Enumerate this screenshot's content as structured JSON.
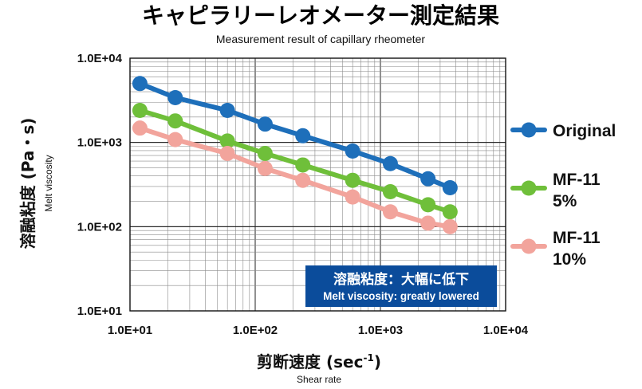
{
  "title": "キャピラリーレオメーター測定結果",
  "subtitle": "Measurement result of capillary rheometer",
  "chart_data": {
    "type": "line",
    "x_scale": "log",
    "y_scale": "log",
    "xlim": [
      10,
      10000
    ],
    "ylim": [
      10,
      10000
    ],
    "grid": true,
    "legend_position": "right",
    "xlabel_jp": "剪断速度 (sec",
    "xlabel_sup": "-1",
    "xlabel_close": ")",
    "xlabel_en": "Shear rate",
    "ylabel_jp": "溶融粘度 (Pa・s)",
    "ylabel_en": "Melt viscosity",
    "x_tick_labels": [
      "1.0E+01",
      "1.0E+02",
      "1.0E+03",
      "1.0E+04"
    ],
    "y_tick_labels": [
      "1.0E+01",
      "1.0E+02",
      "1.0E+03",
      "1.0E+04"
    ],
    "x": [
      12,
      23,
      60,
      120,
      240,
      600,
      1200,
      2400,
      3600
    ],
    "series": [
      {
        "name": "Original",
        "color": "#1e6fba",
        "values": [
          5000,
          3400,
          2400,
          1650,
          1200,
          790,
          560,
          370,
          290
        ]
      },
      {
        "name": "MF-11 5%",
        "color": "#6fbf3a",
        "values": [
          2400,
          1800,
          1040,
          740,
          540,
          355,
          260,
          182,
          150
        ]
      },
      {
        "name": "MF-11 10%",
        "color": "#f2a49c",
        "values": [
          1480,
          1080,
          740,
          490,
          355,
          225,
          150,
          110,
          100
        ]
      }
    ],
    "legend": [
      {
        "line1": "Original",
        "line2": ""
      },
      {
        "line1": "MF-11",
        "line2": "5%"
      },
      {
        "line1": "MF-11",
        "line2": "10%"
      }
    ],
    "annotation": {
      "text_jp": "溶融粘度：大幅に低下",
      "text_en": "Melt viscosity: greatly lowered",
      "color": "#0b4c9b"
    }
  }
}
